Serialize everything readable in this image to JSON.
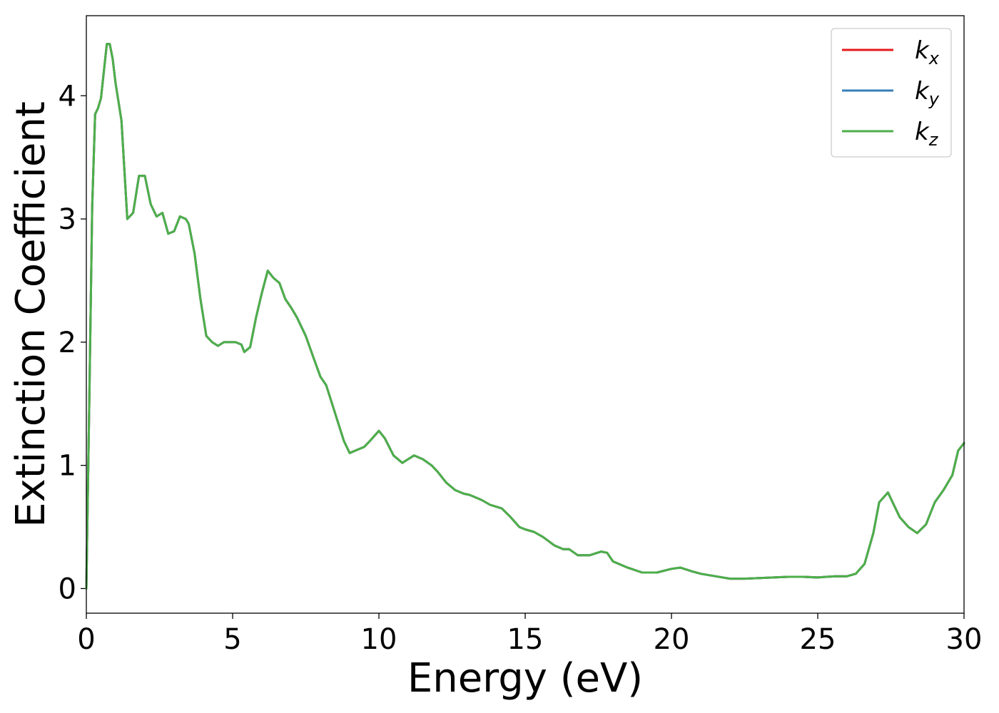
{
  "chart_data": {
    "type": "line",
    "xlabel": "Energy (eV)",
    "ylabel": "Extinction Coefficient",
    "xlim": [
      0,
      30
    ],
    "ylim": [
      -0.2,
      4.65
    ],
    "xticks": [
      0,
      5,
      10,
      15,
      20,
      25,
      30
    ],
    "yticks": [
      0,
      1,
      2,
      3,
      4
    ],
    "grid": false,
    "legend_position": "top-right",
    "series": [
      {
        "name": "k",
        "subscript": "x",
        "color": "#e41a1c"
      },
      {
        "name": "k",
        "subscript": "y",
        "color": "#377eb8"
      },
      {
        "name": "k",
        "subscript": "z",
        "color": "#4daf4a"
      }
    ],
    "x": [
      0,
      0.1,
      0.2,
      0.3,
      0.4,
      0.5,
      0.6,
      0.7,
      0.8,
      0.9,
      1.0,
      1.1,
      1.2,
      1.4,
      1.6,
      1.8,
      2.0,
      2.2,
      2.4,
      2.6,
      2.8,
      3.0,
      3.2,
      3.4,
      3.5,
      3.7,
      3.9,
      4.1,
      4.3,
      4.5,
      4.7,
      4.9,
      5.1,
      5.3,
      5.4,
      5.6,
      5.8,
      6.0,
      6.2,
      6.4,
      6.6,
      6.8,
      7.0,
      7.2,
      7.5,
      7.8,
      8.0,
      8.2,
      8.4,
      8.6,
      8.8,
      9.0,
      9.2,
      9.5,
      9.7,
      10.0,
      10.2,
      10.5,
      10.8,
      11.0,
      11.2,
      11.5,
      11.8,
      12.0,
      12.3,
      12.6,
      12.9,
      13.1,
      13.5,
      13.8,
      14.2,
      14.5,
      14.8,
      15.0,
      15.3,
      15.6,
      16.0,
      16.3,
      16.5,
      16.8,
      17.2,
      17.6,
      17.8,
      18.0,
      18.5,
      19.0,
      19.5,
      20.0,
      20.3,
      20.7,
      21.0,
      21.5,
      22.0,
      22.5,
      23.0,
      23.5,
      24.0,
      24.5,
      25.0,
      25.3,
      25.6,
      26.0,
      26.3,
      26.6,
      26.9,
      27.1,
      27.4,
      27.6,
      27.8,
      28.1,
      28.4,
      28.7,
      29.0,
      29.3,
      29.6,
      29.8,
      30.0
    ],
    "values": [
      0.0,
      1.5,
      3.1,
      3.85,
      3.9,
      3.98,
      4.2,
      4.42,
      4.42,
      4.3,
      4.1,
      3.95,
      3.8,
      3.0,
      3.05,
      3.35,
      3.35,
      3.12,
      3.02,
      3.05,
      2.88,
      2.9,
      3.02,
      3.0,
      2.96,
      2.72,
      2.35,
      2.05,
      2.0,
      1.97,
      2.0,
      2.0,
      2.0,
      1.98,
      1.92,
      1.96,
      2.2,
      2.4,
      2.58,
      2.52,
      2.48,
      2.35,
      2.28,
      2.2,
      2.05,
      1.85,
      1.72,
      1.65,
      1.5,
      1.35,
      1.2,
      1.1,
      1.12,
      1.15,
      1.2,
      1.28,
      1.22,
      1.08,
      1.02,
      1.05,
      1.08,
      1.05,
      1.0,
      0.95,
      0.86,
      0.8,
      0.77,
      0.76,
      0.72,
      0.68,
      0.65,
      0.58,
      0.5,
      0.48,
      0.46,
      0.42,
      0.35,
      0.32,
      0.32,
      0.27,
      0.27,
      0.3,
      0.29,
      0.22,
      0.17,
      0.13,
      0.13,
      0.16,
      0.17,
      0.14,
      0.12,
      0.1,
      0.08,
      0.08,
      0.085,
      0.09,
      0.095,
      0.095,
      0.09,
      0.095,
      0.1,
      0.1,
      0.12,
      0.2,
      0.45,
      0.7,
      0.78,
      0.68,
      0.58,
      0.5,
      0.45,
      0.52,
      0.7,
      0.8,
      0.92,
      1.12,
      1.18
    ]
  }
}
